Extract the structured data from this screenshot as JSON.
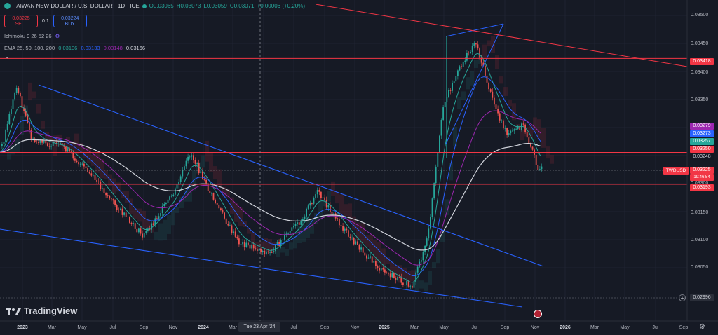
{
  "header": {
    "symbol_title": "TAIWAN NEW DOLLAR / U.S. DOLLAR · 1D · ICE",
    "open": "O0.03065",
    "high": "H0.03073",
    "low": "L0.03059",
    "close": "C0.03071",
    "change": "+0.00006 (+0.20%)"
  },
  "trade": {
    "sell_price": "0.03225",
    "sell_label": "SELL",
    "spread": "0.1",
    "buy_price": "0.03224",
    "buy_label": "BUY"
  },
  "indicators": {
    "ichimoku_label": "Ichimoku 9 26 52 26",
    "ema_label": "EMA 25, 50, 100, 200",
    "ema_values": [
      "0.03106",
      "0.03133",
      "0.03148",
      "0.03166"
    ],
    "ema_colors": [
      "#26a69a",
      "#2962ff",
      "#9c27b0",
      "#d1d4dc"
    ]
  },
  "price_scale": {
    "labels": [
      "0.03500",
      "0.03450",
      "0.03400",
      "0.03350",
      "0.03300",
      "0.03150",
      "0.03100",
      "0.03050"
    ],
    "tags": [
      {
        "value": "0.03418",
        "color": "#f23645"
      },
      {
        "value": "0.03279",
        "color": "#9c27b0"
      },
      {
        "value": "0.03273",
        "color": "#2962ff"
      },
      {
        "value": "0.03257",
        "color": "#26a69a"
      },
      {
        "value": "0.03250",
        "color": "#f23645"
      },
      {
        "value": "0.03248",
        "color": "#131722"
      },
      {
        "value": "0.03225",
        "color": "#f23645"
      },
      {
        "value": "19:46:54",
        "color": "#f23645"
      },
      {
        "value": "0.03193",
        "color": "#f23645"
      },
      {
        "value": "0.02996",
        "color": "#2a2e39"
      }
    ],
    "symbol_tag": "TWDUSD"
  },
  "time_axis": {
    "labels": [
      "2023",
      "Mar",
      "May",
      "Jul",
      "Sep",
      "Nov",
      "2024",
      "Mar",
      "Jul",
      "Sep",
      "Nov",
      "2025",
      "Mar",
      "May",
      "Jul",
      "Sep",
      "Nov",
      "2026",
      "Mar",
      "May",
      "Jul",
      "Sep"
    ],
    "crosshair_label": "Tue 23 Apr '24"
  },
  "branding": {
    "logo_text": "TradingView"
  },
  "chart_data": {
    "type": "candlestick",
    "title": "TAIWAN NEW DOLLAR / U.S. DOLLAR · 1D · ICE",
    "horizontal_levels": [
      0.03418,
      0.0325,
      0.03193
    ],
    "ylim": [
      0.0299,
      0.0352
    ],
    "approx_path": [
      {
        "x": "2023-01",
        "y": 0.0325
      },
      {
        "x": "2023-02",
        "y": 0.0337
      },
      {
        "x": "2023-03",
        "y": 0.0327
      },
      {
        "x": "2023-05",
        "y": 0.0326
      },
      {
        "x": "2023-07",
        "y": 0.032
      },
      {
        "x": "2023-09",
        "y": 0.0313
      },
      {
        "x": "2023-10",
        "y": 0.031
      },
      {
        "x": "2023-12",
        "y": 0.0318
      },
      {
        "x": "2024-01",
        "y": 0.0325
      },
      {
        "x": "2024-02",
        "y": 0.0319
      },
      {
        "x": "2024-04",
        "y": 0.0309
      },
      {
        "x": "2024-06",
        "y": 0.0307
      },
      {
        "x": "2024-08",
        "y": 0.0313
      },
      {
        "x": "2024-09",
        "y": 0.0318
      },
      {
        "x": "2024-11",
        "y": 0.031
      },
      {
        "x": "2025-01",
        "y": 0.0304
      },
      {
        "x": "2025-03",
        "y": 0.0301
      },
      {
        "x": "2025-04",
        "y": 0.031
      },
      {
        "x": "2025-05",
        "y": 0.0334
      },
      {
        "x": "2025-06",
        "y": 0.034
      },
      {
        "x": "2025-07",
        "y": 0.0345
      },
      {
        "x": "2025-08",
        "y": 0.0335
      },
      {
        "x": "2025-09",
        "y": 0.0328
      },
      {
        "x": "2025-10",
        "y": 0.033
      },
      {
        "x": "2025-11",
        "y": 0.0322
      }
    ]
  }
}
